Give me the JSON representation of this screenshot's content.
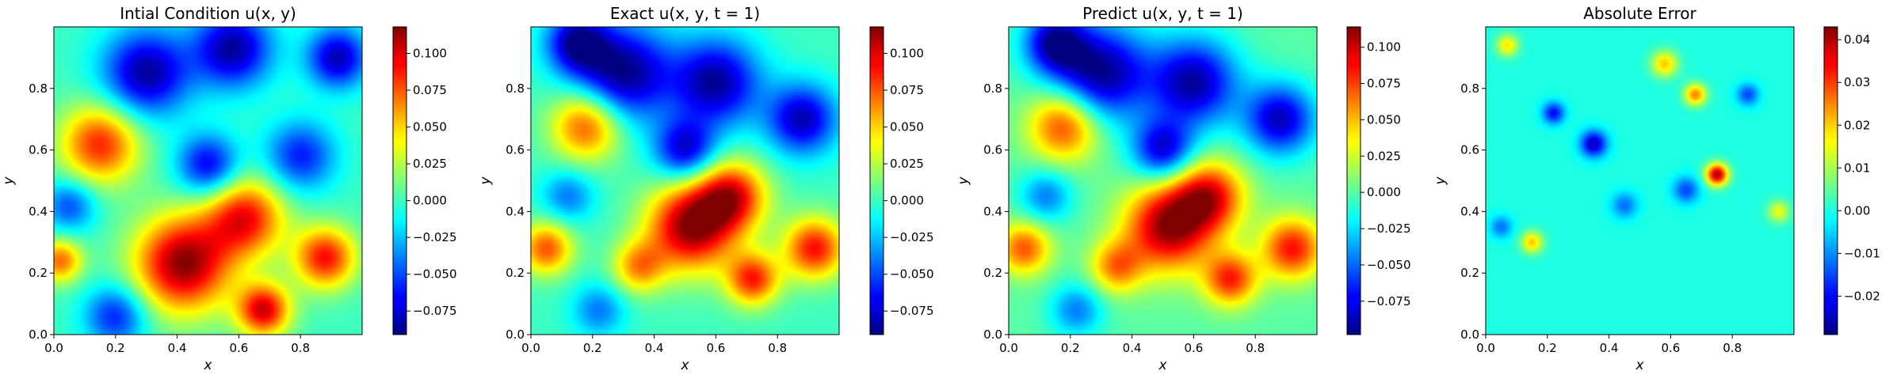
{
  "chart_data": [
    {
      "type": "heatmap",
      "title": "Intial Condition u(x, y)",
      "xlabel": "x",
      "ylabel": "y",
      "xlim": [
        0.0,
        1.0
      ],
      "ylim": [
        0.0,
        1.0
      ],
      "xticks": [
        "0.0",
        "0.2",
        "0.4",
        "0.6",
        "0.8"
      ],
      "yticks": [
        "0.0",
        "0.2",
        "0.4",
        "0.6",
        "0.8"
      ],
      "colormap": "jet",
      "colorbar": {
        "vmin": -0.091,
        "vmax": 0.118,
        "ticks": [
          "−0.075",
          "−0.050",
          "−0.025",
          "0.000",
          "0.025",
          "0.050",
          "0.075",
          "0.100"
        ],
        "tick_values": [
          -0.075,
          -0.05,
          -0.025,
          0.0,
          0.025,
          0.05,
          0.075,
          0.1
        ]
      },
      "features": [
        {
          "x": 0.15,
          "y": 0.62,
          "v": 0.085,
          "r": 0.09
        },
        {
          "x": 0.42,
          "y": 0.23,
          "v": 0.115,
          "r": 0.11
        },
        {
          "x": 0.62,
          "y": 0.38,
          "v": 0.09,
          "r": 0.09
        },
        {
          "x": 0.68,
          "y": 0.08,
          "v": 0.1,
          "r": 0.06
        },
        {
          "x": 0.88,
          "y": 0.25,
          "v": 0.09,
          "r": 0.07
        },
        {
          "x": 0.02,
          "y": 0.24,
          "v": 0.07,
          "r": 0.05
        },
        {
          "x": 0.3,
          "y": 0.85,
          "v": -0.085,
          "r": 0.1
        },
        {
          "x": 0.58,
          "y": 0.93,
          "v": -0.085,
          "r": 0.09
        },
        {
          "x": 0.92,
          "y": 0.9,
          "v": -0.08,
          "r": 0.07
        },
        {
          "x": 0.5,
          "y": 0.55,
          "v": -0.07,
          "r": 0.07
        },
        {
          "x": 0.2,
          "y": 0.06,
          "v": -0.06,
          "r": 0.07
        },
        {
          "x": 0.8,
          "y": 0.58,
          "v": -0.06,
          "r": 0.08
        },
        {
          "x": 0.05,
          "y": 0.42,
          "v": -0.05,
          "r": 0.06
        }
      ]
    },
    {
      "type": "heatmap",
      "title": "Exact u(x, y, t = 1)",
      "xlabel": "x",
      "ylabel": "y",
      "xlim": [
        0.0,
        1.0
      ],
      "ylim": [
        0.0,
        1.0
      ],
      "xticks": [
        "0.0",
        "0.2",
        "0.4",
        "0.6",
        "0.8"
      ],
      "yticks": [
        "0.0",
        "0.2",
        "0.4",
        "0.6",
        "0.8"
      ],
      "colormap": "jet",
      "colorbar": {
        "vmin": -0.091,
        "vmax": 0.118,
        "ticks": [
          "−0.075",
          "−0.050",
          "−0.025",
          "0.000",
          "0.025",
          "0.050",
          "0.075",
          "0.100"
        ],
        "tick_values": [
          -0.075,
          -0.05,
          -0.025,
          0.0,
          0.025,
          0.05,
          0.075,
          0.1
        ]
      },
      "features": [
        {
          "x": 0.52,
          "y": 0.35,
          "v": 0.115,
          "r": 0.1
        },
        {
          "x": 0.65,
          "y": 0.45,
          "v": 0.09,
          "r": 0.08
        },
        {
          "x": 0.72,
          "y": 0.18,
          "v": 0.085,
          "r": 0.06
        },
        {
          "x": 0.92,
          "y": 0.28,
          "v": 0.09,
          "r": 0.07
        },
        {
          "x": 0.18,
          "y": 0.68,
          "v": 0.08,
          "r": 0.08
        },
        {
          "x": 0.05,
          "y": 0.28,
          "v": 0.075,
          "r": 0.06
        },
        {
          "x": 0.35,
          "y": 0.22,
          "v": 0.06,
          "r": 0.06
        },
        {
          "x": 0.3,
          "y": 0.85,
          "v": -0.09,
          "r": 0.11
        },
        {
          "x": 0.6,
          "y": 0.82,
          "v": -0.085,
          "r": 0.1
        },
        {
          "x": 0.88,
          "y": 0.7,
          "v": -0.08,
          "r": 0.08
        },
        {
          "x": 0.5,
          "y": 0.6,
          "v": -0.075,
          "r": 0.07
        },
        {
          "x": 0.15,
          "y": 0.95,
          "v": -0.08,
          "r": 0.07
        },
        {
          "x": 0.12,
          "y": 0.45,
          "v": -0.04,
          "r": 0.06
        },
        {
          "x": 0.22,
          "y": 0.08,
          "v": -0.04,
          "r": 0.06
        }
      ]
    },
    {
      "type": "heatmap",
      "title": "Predict u(x, y, t = 1)",
      "xlabel": "x",
      "ylabel": "y",
      "xlim": [
        0.0,
        1.0
      ],
      "ylim": [
        0.0,
        1.0
      ],
      "xticks": [
        "0.0",
        "0.2",
        "0.4",
        "0.6",
        "0.8"
      ],
      "yticks": [
        "0.0",
        "0.2",
        "0.4",
        "0.6",
        "0.8"
      ],
      "colormap": "jet",
      "colorbar": {
        "vmin": -0.098,
        "vmax": 0.114,
        "ticks": [
          "−0.075",
          "−0.050",
          "−0.025",
          "0.000",
          "0.025",
          "0.050",
          "0.075",
          "0.100"
        ],
        "tick_values": [
          -0.075,
          -0.05,
          -0.025,
          0.0,
          0.025,
          0.05,
          0.075,
          0.1
        ]
      },
      "features": [
        {
          "x": 0.52,
          "y": 0.35,
          "v": 0.11,
          "r": 0.1
        },
        {
          "x": 0.65,
          "y": 0.45,
          "v": 0.085,
          "r": 0.08
        },
        {
          "x": 0.72,
          "y": 0.18,
          "v": 0.08,
          "r": 0.06
        },
        {
          "x": 0.92,
          "y": 0.28,
          "v": 0.085,
          "r": 0.07
        },
        {
          "x": 0.18,
          "y": 0.68,
          "v": 0.08,
          "r": 0.08
        },
        {
          "x": 0.05,
          "y": 0.28,
          "v": 0.07,
          "r": 0.06
        },
        {
          "x": 0.35,
          "y": 0.22,
          "v": 0.06,
          "r": 0.06
        },
        {
          "x": 0.3,
          "y": 0.85,
          "v": -0.095,
          "r": 0.11
        },
        {
          "x": 0.6,
          "y": 0.82,
          "v": -0.09,
          "r": 0.1
        },
        {
          "x": 0.88,
          "y": 0.7,
          "v": -0.085,
          "r": 0.08
        },
        {
          "x": 0.5,
          "y": 0.6,
          "v": -0.08,
          "r": 0.07
        },
        {
          "x": 0.15,
          "y": 0.95,
          "v": -0.085,
          "r": 0.07
        },
        {
          "x": 0.12,
          "y": 0.45,
          "v": -0.045,
          "r": 0.06
        },
        {
          "x": 0.22,
          "y": 0.08,
          "v": -0.045,
          "r": 0.06
        }
      ]
    },
    {
      "type": "heatmap",
      "title": "Absolute Error",
      "xlabel": "x",
      "ylabel": "y",
      "xlim": [
        0.0,
        1.0
      ],
      "ylim": [
        0.0,
        1.0
      ],
      "xticks": [
        "0.0",
        "0.2",
        "0.4",
        "0.6",
        "0.8"
      ],
      "yticks": [
        "0.0",
        "0.2",
        "0.4",
        "0.6",
        "0.8"
      ],
      "colormap": "jet",
      "colorbar": {
        "vmin": -0.029,
        "vmax": 0.043,
        "ticks": [
          "−0.02",
          "−0.01",
          "0.00",
          "0.01",
          "0.02",
          "0.03",
          "0.04"
        ],
        "tick_values": [
          -0.02,
          -0.01,
          0.0,
          0.01,
          0.02,
          0.03,
          0.04
        ]
      },
      "features": [
        {
          "x": 0.75,
          "y": 0.52,
          "v": 0.04,
          "r": 0.025
        },
        {
          "x": 0.58,
          "y": 0.88,
          "v": 0.02,
          "r": 0.03
        },
        {
          "x": 0.68,
          "y": 0.78,
          "v": 0.025,
          "r": 0.025
        },
        {
          "x": 0.07,
          "y": 0.94,
          "v": 0.018,
          "r": 0.025
        },
        {
          "x": 0.15,
          "y": 0.3,
          "v": 0.02,
          "r": 0.025
        },
        {
          "x": 0.35,
          "y": 0.62,
          "v": -0.025,
          "r": 0.03
        },
        {
          "x": 0.22,
          "y": 0.72,
          "v": -0.02,
          "r": 0.025
        },
        {
          "x": 0.65,
          "y": 0.47,
          "v": -0.015,
          "r": 0.03
        },
        {
          "x": 0.45,
          "y": 0.42,
          "v": -0.012,
          "r": 0.03
        },
        {
          "x": 0.85,
          "y": 0.78,
          "v": -0.015,
          "r": 0.025
        },
        {
          "x": 0.95,
          "y": 0.4,
          "v": 0.015,
          "r": 0.025
        },
        {
          "x": 0.05,
          "y": 0.35,
          "v": -0.012,
          "r": 0.025
        }
      ]
    }
  ]
}
